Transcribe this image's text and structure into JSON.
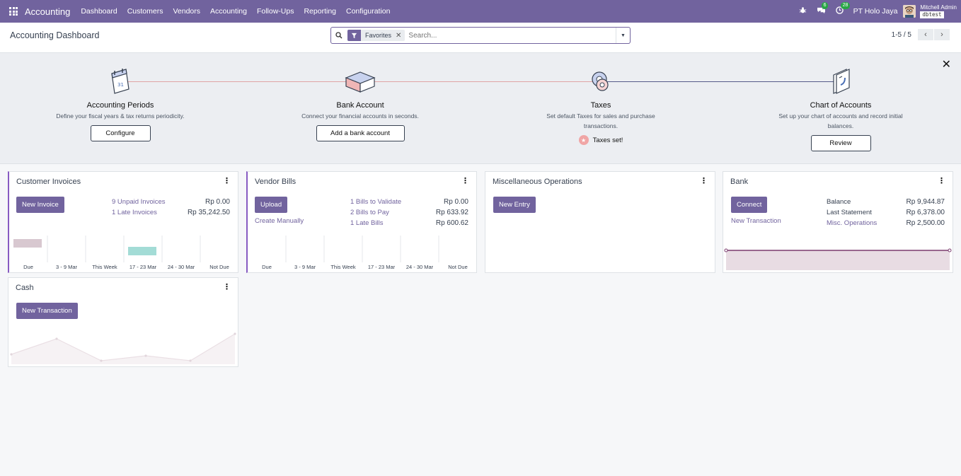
{
  "navbar": {
    "brand": "Accounting",
    "menu": [
      "Dashboard",
      "Customers",
      "Vendors",
      "Accounting",
      "Follow-Ups",
      "Reporting",
      "Configuration"
    ],
    "messages_badge": "6",
    "activities_badge": "28",
    "company": "PT Holo Jaya",
    "user_name": "Mitchell Admin",
    "database": "dbtest"
  },
  "control": {
    "page_title": "Accounting Dashboard",
    "facet_label": "Favorites",
    "search_placeholder": "Search...",
    "pager": "1-5 / 5"
  },
  "onboarding": {
    "steps": [
      {
        "title": "Accounting Periods",
        "desc": "Define your fiscal years & tax returns periodicity.",
        "button": "Configure"
      },
      {
        "title": "Bank Account",
        "desc": "Connect your financial accounts in seconds.",
        "button": "Add a bank account"
      },
      {
        "title": "Taxes",
        "desc": "Set default Taxes for sales and purchase transactions.",
        "done_label": "Taxes set!"
      },
      {
        "title": "Chart of Accounts",
        "desc": "Set up your chart of accounts and record initial balances.",
        "button": "Review"
      }
    ]
  },
  "cards": {
    "customer_invoices": {
      "title": "Customer Invoices",
      "button": "New Invoice",
      "kpis": [
        {
          "label": "9 Unpaid Invoices",
          "value": "Rp 0.00"
        },
        {
          "label": "1 Late Invoices",
          "value": "Rp 35,242.50"
        }
      ],
      "axis": [
        "Due",
        "3 - 9 Mar",
        "This Week",
        "17 - 23 Mar",
        "24 - 30 Mar",
        "Not Due"
      ]
    },
    "vendor_bills": {
      "title": "Vendor Bills",
      "button": "Upload",
      "secondary_link": "Create Manually",
      "kpis": [
        {
          "label": "1 Bills to Validate",
          "value": "Rp 0.00"
        },
        {
          "label": "2 Bills to Pay",
          "value": "Rp 633.92"
        },
        {
          "label": "1 Late Bills",
          "value": "Rp 600.62"
        }
      ],
      "axis": [
        "Due",
        "3 - 9 Mar",
        "This Week",
        "17 - 23 Mar",
        "24 - 30 Mar",
        "Not Due"
      ]
    },
    "misc": {
      "title": "Miscellaneous Operations",
      "button": "New Entry"
    },
    "bank": {
      "title": "Bank",
      "button": "Connect",
      "secondary_link": "New Transaction",
      "kpis": [
        {
          "label": "Balance",
          "value": "Rp 9,944.87"
        },
        {
          "label": "Last Statement",
          "value": "Rp 6,378.00"
        },
        {
          "label": "Misc. Operations",
          "value": "Rp 2,500.00"
        }
      ]
    },
    "cash": {
      "title": "Cash",
      "button": "New Transaction"
    }
  },
  "colors": {
    "brand": "#71639e",
    "selected_border": "#875bc2",
    "bar_past": "#d8c8d0",
    "bar_future": "#a3dcd6"
  }
}
